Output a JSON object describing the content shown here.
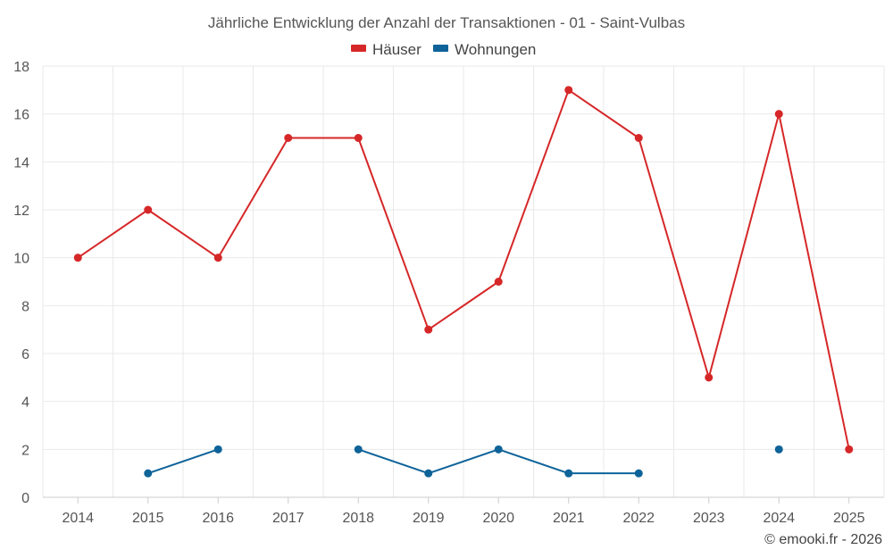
{
  "chart_data": {
    "type": "line",
    "title": "Jährliche Entwicklung der Anzahl der Transaktionen - 01 - Saint-Vulbas",
    "xlabel": "",
    "ylabel": "",
    "categories": [
      "2014",
      "2015",
      "2016",
      "2017",
      "2018",
      "2019",
      "2020",
      "2021",
      "2022",
      "2023",
      "2024",
      "2025"
    ],
    "ylim": [
      0,
      18
    ],
    "yticks": [
      0,
      2,
      4,
      6,
      8,
      10,
      12,
      14,
      16,
      18
    ],
    "grid": true,
    "legend_position": "top-center",
    "series": [
      {
        "name": "Häuser",
        "color": "#d62728",
        "values": [
          10,
          12,
          10,
          15,
          15,
          7,
          9,
          17,
          15,
          5,
          16,
          2
        ]
      },
      {
        "name": "Wohnungen",
        "color": "#0e6399",
        "values": [
          null,
          1,
          2,
          null,
          2,
          1,
          2,
          1,
          1,
          null,
          2,
          null
        ]
      }
    ]
  },
  "credit": "© emooki.fr - 2026"
}
